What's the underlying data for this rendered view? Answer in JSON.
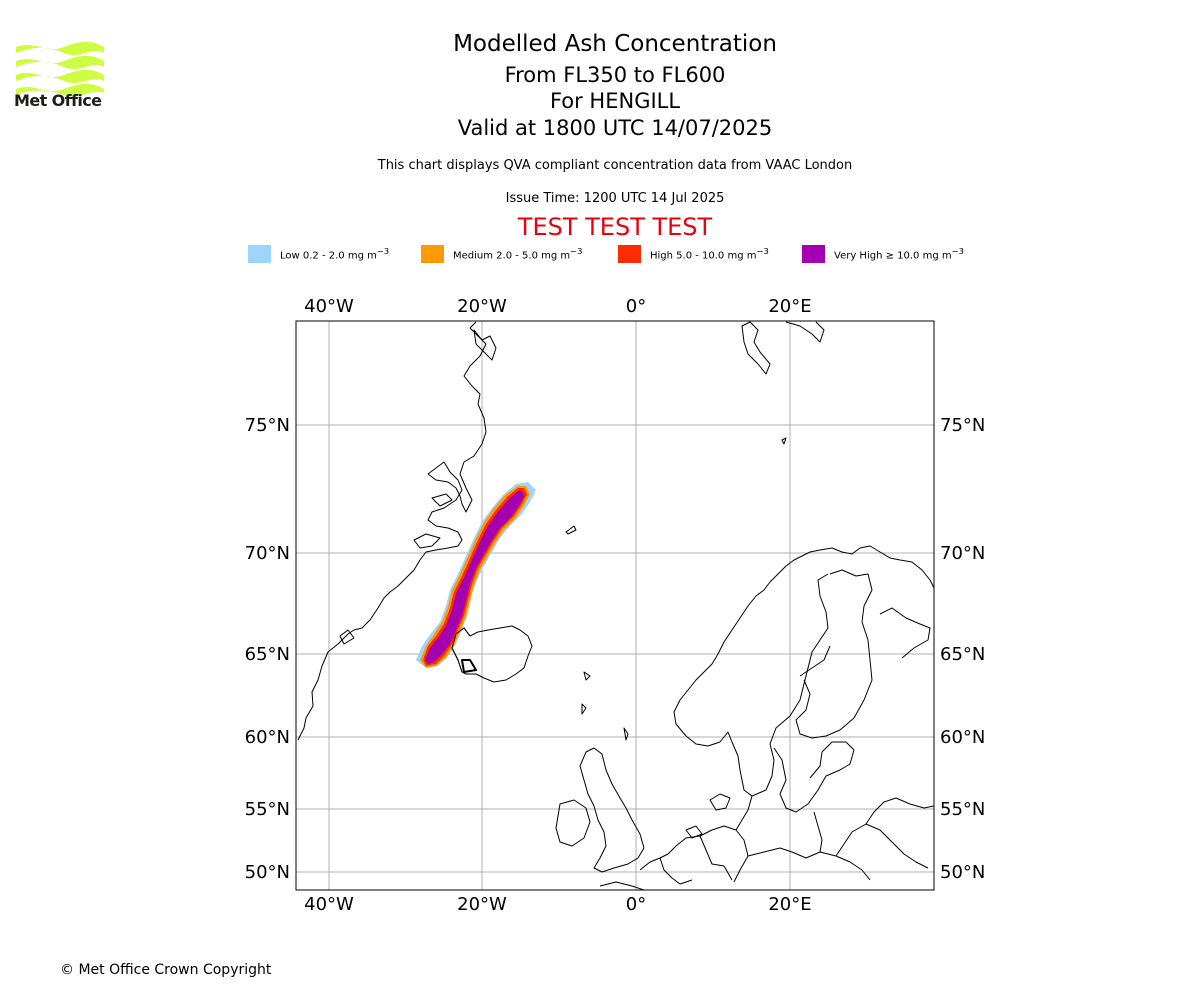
{
  "brand": {
    "name": "Met Office",
    "logo_color": "#cdfc41"
  },
  "header": {
    "title": "Modelled Ash Concentration",
    "levels": "From FL350 to FL600",
    "volcano": "For HENGILL",
    "valid": "Valid at 1800 UTC 14/07/2025",
    "description": "This chart displays QVA compliant concentration data from VAAC London",
    "issue_time": "Issue Time: 1200 UTC 14 Jul 2025",
    "test_banner": "TEST TEST TEST",
    "test_color": "#e8000b"
  },
  "legend": [
    {
      "label": "Low 0.2 - 2.0 mg m",
      "sup": "−3",
      "color": "#9fd4fd"
    },
    {
      "label": "Medium 2.0 - 5.0 mg m",
      "sup": "−3",
      "color": "#fd9a08"
    },
    {
      "label": "High 5.0 - 10.0 mg m",
      "sup": "−3",
      "color": "#fd2b02"
    },
    {
      "label": "Very High  ≥  10.0 mg m",
      "sup": "−3",
      "color": "#a300b0"
    }
  ],
  "map": {
    "lon_labels": [
      "40°W",
      "20°W",
      "0°",
      "20°E"
    ],
    "lat_labels": [
      "75°N",
      "70°N",
      "65°N",
      "60°N",
      "55°N",
      "50°N"
    ]
  },
  "footer": {
    "copyright": "© Met Office Crown Copyright"
  }
}
